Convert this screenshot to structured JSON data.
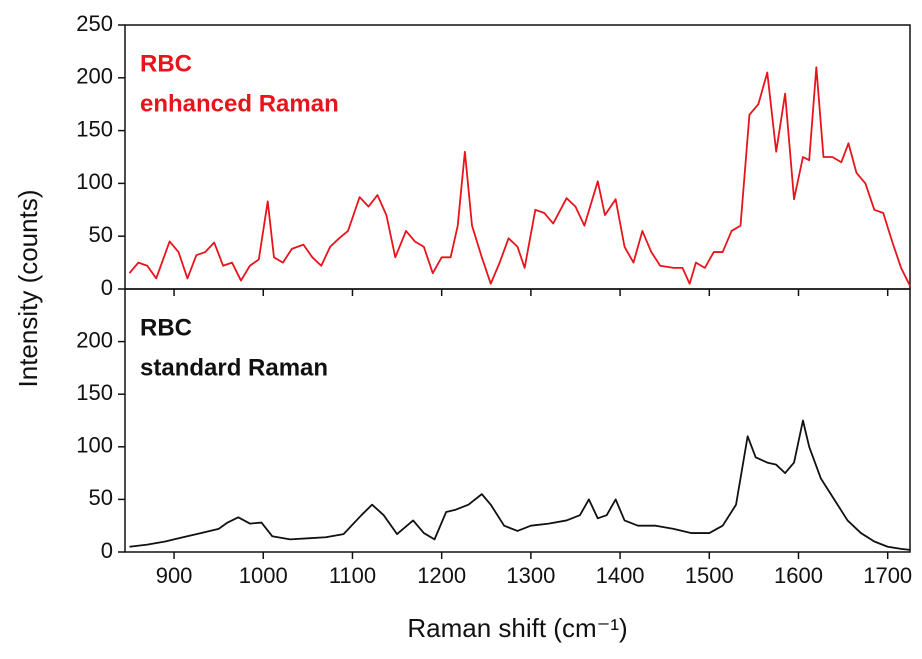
{
  "chart_data": [
    {
      "type": "line",
      "ylabel": "Intensity (counts)",
      "annotations": [
        "RBC",
        "enhanced Raman"
      ],
      "annotation_color": "#e8141b",
      "xlim": [
        845,
        1725
      ],
      "xticks": [
        900,
        1000,
        1100,
        1200,
        1300,
        1400,
        1500,
        1600,
        1700
      ],
      "xtick_labels": false,
      "ylim": [
        0,
        250
      ],
      "yticks": [
        0,
        50,
        100,
        150,
        200,
        250
      ],
      "series": [
        {
          "name": "RBC enhanced Raman",
          "color": "#e8141b",
          "x": [
            850,
            860,
            870,
            880,
            895,
            905,
            915,
            925,
            935,
            945,
            955,
            965,
            975,
            985,
            995,
            1005,
            1012,
            1022,
            1032,
            1045,
            1055,
            1065,
            1075,
            1085,
            1095,
            1108,
            1118,
            1128,
            1138,
            1148,
            1160,
            1170,
            1180,
            1190,
            1200,
            1210,
            1218,
            1226,
            1234,
            1245,
            1255,
            1265,
            1275,
            1285,
            1293,
            1305,
            1315,
            1325,
            1340,
            1350,
            1360,
            1375,
            1383,
            1395,
            1405,
            1415,
            1425,
            1435,
            1445,
            1460,
            1470,
            1478,
            1485,
            1495,
            1505,
            1515,
            1525,
            1535,
            1545,
            1555,
            1565,
            1575,
            1585,
            1595,
            1605,
            1612,
            1620,
            1628,
            1638,
            1648,
            1656,
            1665,
            1675,
            1685,
            1695,
            1705,
            1715,
            1725
          ],
          "values": [
            15,
            25,
            22,
            10,
            45,
            35,
            10,
            32,
            35,
            44,
            22,
            25,
            8,
            22,
            28,
            83,
            30,
            25,
            38,
            42,
            30,
            22,
            40,
            48,
            55,
            87,
            78,
            89,
            70,
            30,
            55,
            45,
            40,
            15,
            30,
            30,
            60,
            130,
            60,
            30,
            5,
            25,
            48,
            40,
            20,
            75,
            72,
            62,
            86,
            78,
            60,
            102,
            70,
            85,
            40,
            25,
            55,
            35,
            22,
            20,
            20,
            5,
            25,
            20,
            35,
            35,
            55,
            60,
            165,
            175,
            205,
            130,
            185,
            85,
            125,
            122,
            210,
            125,
            125,
            120,
            138,
            110,
            100,
            75,
            72,
            45,
            20,
            3
          ]
        }
      ]
    },
    {
      "type": "line",
      "xlabel": "Raman shift (cm⁻¹)",
      "annotations": [
        "RBC",
        "standard Raman"
      ],
      "annotation_color": "#111111",
      "xlim": [
        845,
        1725
      ],
      "xticks": [
        900,
        1000,
        1100,
        1200,
        1300,
        1400,
        1500,
        1600,
        1700
      ],
      "xtick_labels": true,
      "ylim": [
        0,
        250
      ],
      "yticks": [
        0,
        50,
        100,
        150,
        200
      ],
      "series": [
        {
          "name": "RBC standard Raman",
          "color": "#111111",
          "x": [
            850,
            870,
            890,
            910,
            930,
            950,
            960,
            972,
            985,
            998,
            1010,
            1030,
            1050,
            1070,
            1090,
            1110,
            1122,
            1135,
            1150,
            1168,
            1180,
            1192,
            1205,
            1215,
            1230,
            1245,
            1255,
            1270,
            1285,
            1300,
            1320,
            1340,
            1355,
            1365,
            1375,
            1385,
            1395,
            1405,
            1420,
            1440,
            1460,
            1480,
            1500,
            1515,
            1530,
            1543,
            1552,
            1565,
            1575,
            1585,
            1595,
            1605,
            1612,
            1625,
            1640,
            1655,
            1670,
            1685,
            1700,
            1715,
            1725
          ],
          "values": [
            5,
            7,
            10,
            14,
            18,
            22,
            28,
            33,
            27,
            28,
            15,
            12,
            13,
            14,
            17,
            35,
            45,
            35,
            17,
            30,
            18,
            12,
            38,
            40,
            45,
            55,
            45,
            25,
            20,
            25,
            27,
            30,
            35,
            50,
            32,
            35,
            50,
            30,
            25,
            25,
            22,
            18,
            18,
            25,
            45,
            110,
            90,
            85,
            83,
            75,
            85,
            125,
            100,
            70,
            50,
            30,
            18,
            10,
            5,
            3,
            2
          ]
        }
      ]
    }
  ]
}
